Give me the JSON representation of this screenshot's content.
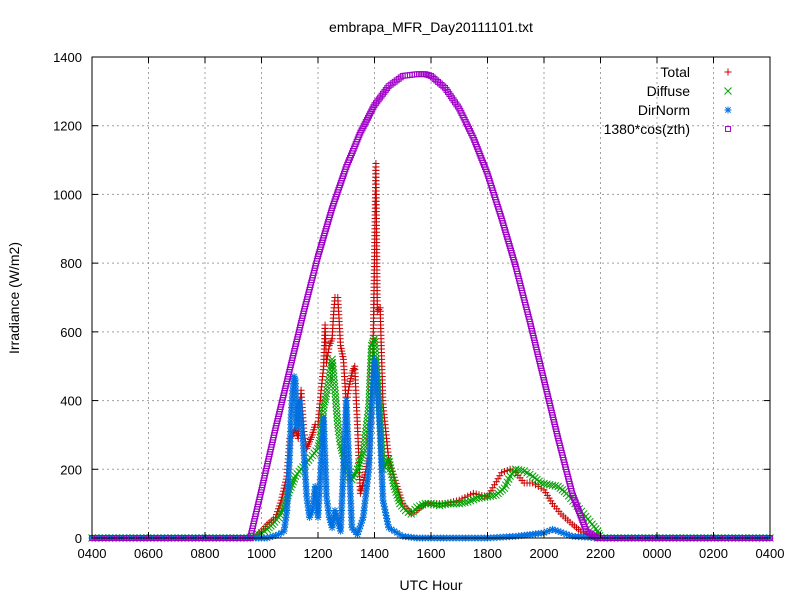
{
  "chart_data": {
    "type": "scatter",
    "title": "embrapa_MFR_Day20111101.txt",
    "xlabel": "UTC Hour",
    "ylabel": "Irradiance (W/m2)",
    "xlim": [
      4,
      28
    ],
    "ylim": [
      0,
      1400
    ],
    "x_ticks": [
      {
        "value": 4,
        "label": "0400"
      },
      {
        "value": 6,
        "label": "0600"
      },
      {
        "value": 8,
        "label": "0800"
      },
      {
        "value": 10,
        "label": "1000"
      },
      {
        "value": 12,
        "label": "1200"
      },
      {
        "value": 14,
        "label": "1400"
      },
      {
        "value": 16,
        "label": "1600"
      },
      {
        "value": 18,
        "label": "1800"
      },
      {
        "value": 20,
        "label": "2000"
      },
      {
        "value": 22,
        "label": "2200"
      },
      {
        "value": 24,
        "label": "0000"
      },
      {
        "value": 26,
        "label": "0200"
      },
      {
        "value": 28,
        "label": "0400"
      }
    ],
    "y_ticks": [
      0,
      200,
      400,
      600,
      800,
      1000,
      1200,
      1400
    ],
    "grid": true,
    "legend_position": "top-right",
    "series": [
      {
        "name": "Total",
        "marker": "plus",
        "color": "#cc0000",
        "x": [
          4,
          9.5,
          9.8,
          10.0,
          10.2,
          10.5,
          10.7,
          10.9,
          11.0,
          11.1,
          11.2,
          11.3,
          11.4,
          11.5,
          11.6,
          11.7,
          11.8,
          11.9,
          12.0,
          12.1,
          12.2,
          12.25,
          12.3,
          12.4,
          12.5,
          12.55,
          12.6,
          12.7,
          12.8,
          12.9,
          13.0,
          13.1,
          13.2,
          13.3,
          13.4,
          13.5,
          13.6,
          13.7,
          13.8,
          13.85,
          13.9,
          13.95,
          14.0,
          14.05,
          14.1,
          14.2,
          14.3,
          14.5,
          14.8,
          15.0,
          15.3,
          15.5,
          15.8,
          16.0,
          16.5,
          17.0,
          17.5,
          18.0,
          18.5,
          18.8,
          19.0,
          19.3,
          19.6,
          20.0,
          20.3,
          20.6,
          21.0,
          21.3,
          21.6,
          21.8,
          22.0,
          28
        ],
        "y": [
          0,
          0,
          5,
          20,
          40,
          60,
          110,
          180,
          290,
          300,
          320,
          290,
          430,
          310,
          260,
          280,
          300,
          330,
          330,
          420,
          500,
          620,
          510,
          560,
          580,
          650,
          700,
          700,
          560,
          520,
          390,
          440,
          480,
          500,
          320,
          130,
          160,
          200,
          240,
          330,
          450,
          560,
          820,
          1090,
          660,
          670,
          390,
          230,
          150,
          100,
          70,
          80,
          100,
          100,
          100,
          110,
          130,
          120,
          190,
          200,
          190,
          160,
          160,
          140,
          100,
          70,
          40,
          20,
          5,
          0,
          0,
          0
        ]
      },
      {
        "name": "Diffuse",
        "marker": "cross",
        "color": "#00a000",
        "x": [
          4,
          9.5,
          9.8,
          10.0,
          10.2,
          10.4,
          10.6,
          10.8,
          11.0,
          11.2,
          11.4,
          11.6,
          11.8,
          12.0,
          12.1,
          12.2,
          12.3,
          12.4,
          12.5,
          12.6,
          12.7,
          12.8,
          12.9,
          13.0,
          13.2,
          13.4,
          13.6,
          13.8,
          13.9,
          14.0,
          14.1,
          14.2,
          14.3,
          14.5,
          14.7,
          14.9,
          15.1,
          15.3,
          15.5,
          15.8,
          16.0,
          16.3,
          16.6,
          17.0,
          17.3,
          17.6,
          18.0,
          18.3,
          18.6,
          18.8,
          19.0,
          19.3,
          19.6,
          19.9,
          20.2,
          20.5,
          20.8,
          21.1,
          21.4,
          21.7,
          21.9,
          22.0,
          28
        ],
        "y": [
          0,
          0,
          5,
          15,
          25,
          40,
          60,
          90,
          140,
          180,
          200,
          220,
          240,
          260,
          300,
          380,
          420,
          470,
          520,
          430,
          330,
          270,
          240,
          190,
          170,
          200,
          250,
          380,
          560,
          580,
          470,
          350,
          200,
          230,
          150,
          100,
          80,
          70,
          90,
          100,
          100,
          95,
          100,
          100,
          105,
          115,
          120,
          125,
          145,
          180,
          200,
          195,
          180,
          160,
          155,
          150,
          130,
          100,
          70,
          40,
          20,
          0,
          0
        ]
      },
      {
        "name": "DirNorm",
        "marker": "star",
        "color": "#0070e0",
        "x": [
          4,
          9.5,
          9.8,
          10.0,
          10.2,
          10.4,
          10.6,
          10.8,
          10.9,
          11.0,
          11.05,
          11.1,
          11.15,
          11.2,
          11.25,
          11.3,
          11.35,
          11.4,
          11.5,
          11.6,
          11.7,
          11.8,
          11.9,
          12.0,
          12.1,
          12.2,
          12.3,
          12.4,
          12.5,
          12.6,
          12.7,
          12.8,
          12.9,
          13.0,
          13.2,
          13.4,
          13.6,
          13.8,
          13.9,
          14.0,
          14.1,
          14.2,
          14.3,
          14.5,
          15.0,
          15.5,
          16.0,
          17.0,
          18.0,
          19.0,
          19.5,
          20.0,
          20.3,
          20.5,
          21.0,
          22.0,
          28
        ],
        "y": [
          0,
          0,
          0,
          0,
          0,
          5,
          10,
          20,
          80,
          250,
          360,
          430,
          470,
          460,
          320,
          380,
          400,
          350,
          250,
          120,
          60,
          80,
          150,
          60,
          200,
          350,
          120,
          60,
          30,
          80,
          50,
          20,
          200,
          400,
          30,
          10,
          60,
          200,
          380,
          520,
          440,
          300,
          110,
          30,
          5,
          0,
          0,
          0,
          0,
          5,
          10,
          15,
          25,
          20,
          5,
          0,
          0
        ]
      },
      {
        "name": "1380*cos(zth)",
        "marker": "square",
        "color": "#a000c8",
        "x": [
          4,
          9.6,
          10.0,
          10.5,
          11.0,
          11.5,
          12.0,
          12.5,
          13.0,
          13.5,
          14.0,
          14.5,
          15.0,
          15.5,
          15.8,
          16.0,
          16.5,
          17.0,
          17.5,
          18.0,
          18.5,
          19.0,
          19.5,
          20.0,
          20.5,
          21.0,
          21.5,
          21.9,
          28
        ],
        "y": [
          0,
          0,
          140,
          320,
          490,
          660,
          820,
          960,
          1080,
          1180,
          1260,
          1315,
          1345,
          1350,
          1350,
          1345,
          1310,
          1250,
          1165,
          1060,
          930,
          790,
          630,
          460,
          290,
          130,
          20,
          0,
          0
        ]
      }
    ]
  }
}
